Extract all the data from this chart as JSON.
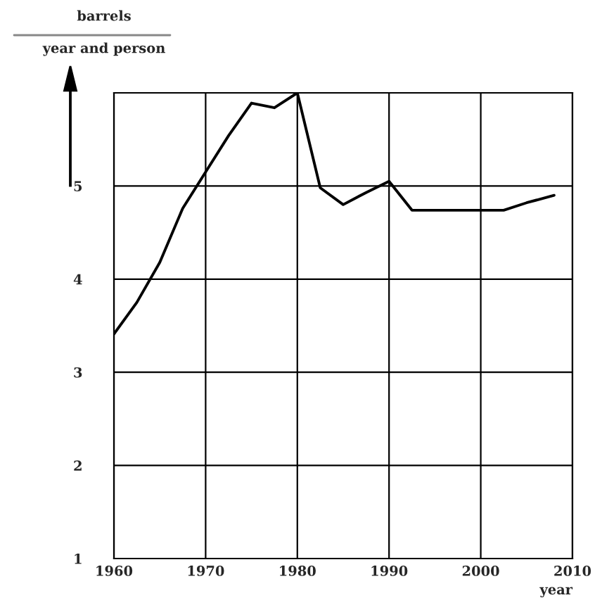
{
  "chart_data": {
    "type": "line",
    "ylabel": "barrels\nyear and person",
    "xlabel": "year",
    "x": [
      1960,
      1962.5,
      1965,
      1967.5,
      1970,
      1972.5,
      1975,
      1977.5,
      1980,
      1982.5,
      1985,
      1987.5,
      1990,
      1992.5,
      1995,
      1997.5,
      2000,
      2002.5,
      2005,
      2008
    ],
    "series": [
      {
        "color": "#000000",
        "values": [
          3.41,
          3.75,
          4.18,
          4.76,
          5.15,
          5.54,
          5.89,
          5.84,
          6.0,
          4.98,
          4.8,
          4.93,
          5.05,
          4.74,
          4.74,
          4.74,
          4.74,
          4.74,
          4.82,
          4.9
        ]
      }
    ],
    "xlim": [
      1960,
      2010
    ],
    "ylim": [
      1,
      6
    ],
    "xticks": [
      1960,
      1970,
      1980,
      1990,
      2000,
      2010
    ],
    "yticks": [
      1,
      2,
      3,
      4,
      5,
      {
        "value": 6,
        "label": null
      }
    ],
    "grid": true,
    "legend": false,
    "marker": "none",
    "line_style": "solid"
  }
}
